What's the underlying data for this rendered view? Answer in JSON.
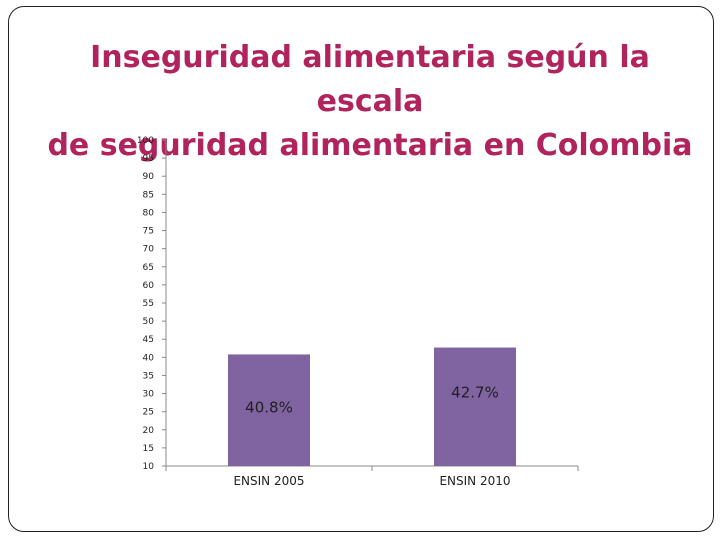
{
  "slide": {
    "title_line1": "Inseguridad alimentaria según la escala",
    "title_line2": "de seguridad alimentaria en Colombia"
  },
  "chart_data": {
    "type": "bar",
    "title": "",
    "xlabel": "",
    "ylabel": "",
    "categories": [
      "ENSIN 2005",
      "ENSIN 2010"
    ],
    "values": [
      40.8,
      42.7
    ],
    "data_labels": [
      "40.8%",
      "42.7%"
    ],
    "ylim": [
      10,
      100
    ],
    "yticks": [
      10,
      15,
      20,
      25,
      30,
      35,
      40,
      45,
      50,
      55,
      60,
      65,
      70,
      75,
      80,
      85,
      90,
      95,
      100
    ],
    "grid": false,
    "legend": "none",
    "bar_color": "#8064a2"
  }
}
